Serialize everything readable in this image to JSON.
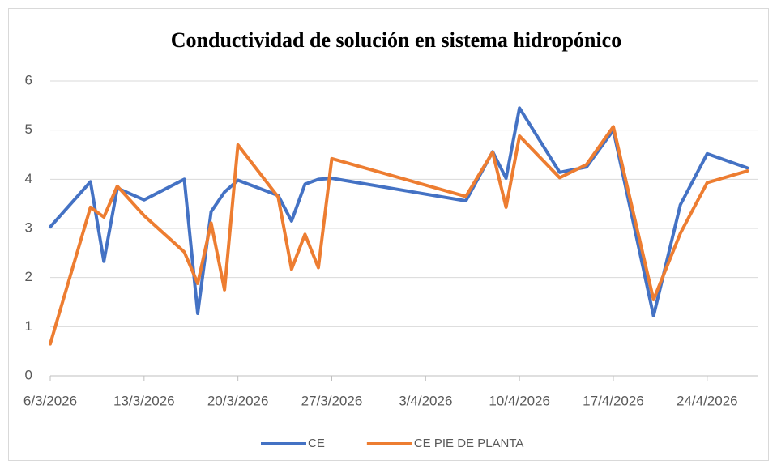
{
  "chart_data": {
    "type": "line",
    "title": "Conductividad de solución en sistema hidropónico",
    "x": [
      "2026-03-06",
      "2026-03-09",
      "2026-03-10",
      "2026-03-11",
      "2026-03-13",
      "2026-03-16",
      "2026-03-17",
      "2026-03-18",
      "2026-03-19",
      "2026-03-20",
      "2026-03-23",
      "2026-03-24",
      "2026-03-25",
      "2026-03-26",
      "2026-03-27",
      "2026-04-06",
      "2026-04-08",
      "2026-04-09",
      "2026-04-10",
      "2026-04-13",
      "2026-04-15",
      "2026-04-17",
      "2026-04-20",
      "2026-04-22",
      "2026-04-24",
      "2026-04-27"
    ],
    "series": [
      {
        "name": "CE",
        "color": "#4472c4",
        "values": [
          3.03,
          3.95,
          2.33,
          3.82,
          3.58,
          4.0,
          1.27,
          3.34,
          3.74,
          3.98,
          3.67,
          3.15,
          3.9,
          4.0,
          4.02,
          3.56,
          4.56,
          4.02,
          5.45,
          4.14,
          4.25,
          5.0,
          1.22,
          3.48,
          4.52,
          4.23
        ]
      },
      {
        "name": "CE PIE DE PLANTA",
        "color": "#ed7d31",
        "values": [
          0.65,
          3.43,
          3.23,
          3.86,
          3.26,
          2.52,
          1.88,
          3.11,
          1.75,
          4.7,
          3.64,
          2.17,
          2.88,
          2.2,
          4.42,
          3.65,
          4.55,
          3.43,
          4.88,
          4.03,
          4.3,
          5.07,
          1.55,
          2.9,
          3.93,
          4.17
        ]
      }
    ],
    "xlim": [
      "2026-03-06",
      "2026-04-28"
    ],
    "xticks": [
      {
        "value": "2026-03-06",
        "label": "6/3/2026"
      },
      {
        "value": "2026-03-13",
        "label": "13/3/2026"
      },
      {
        "value": "2026-03-20",
        "label": "20/3/2026"
      },
      {
        "value": "2026-03-27",
        "label": "27/3/2026"
      },
      {
        "value": "2026-04-03",
        "label": "3/4/2026"
      },
      {
        "value": "2026-04-10",
        "label": "10/4/2026"
      },
      {
        "value": "2026-04-17",
        "label": "17/4/2026"
      },
      {
        "value": "2026-04-24",
        "label": "24/4/2026"
      }
    ],
    "ylim": [
      0,
      6
    ],
    "yticks": [
      0,
      1,
      2,
      3,
      4,
      5,
      6
    ],
    "grid": true,
    "legend": "bottom"
  }
}
